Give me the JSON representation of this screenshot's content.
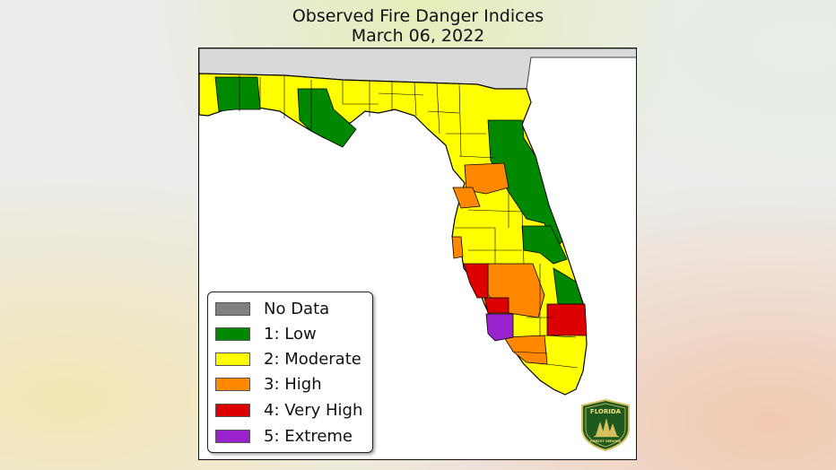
{
  "title": "Observed Fire Danger Indices",
  "subtitle": "March 06, 2022",
  "colors": {
    "no_data": "#808080",
    "low": "#008800",
    "moderate": "#ffff00",
    "high": "#ff8800",
    "very_high": "#dd0000",
    "extreme": "#9922cc",
    "neighbor_states": "#d9d9d9",
    "water": "#ffffff"
  },
  "legend": [
    {
      "label": "No Data",
      "color": "#808080"
    },
    {
      "label": "1: Low",
      "color": "#008800"
    },
    {
      "label": "2: Moderate",
      "color": "#ffff00"
    },
    {
      "label": "3: High",
      "color": "#ff8800"
    },
    {
      "label": "4: Very High",
      "color": "#dd0000"
    },
    {
      "label": "5: Extreme",
      "color": "#9922cc"
    }
  ],
  "logo": {
    "line1": "FLORIDA",
    "line2": "FOREST SERVICE",
    "icon": "pine-trees-shield-icon"
  }
}
